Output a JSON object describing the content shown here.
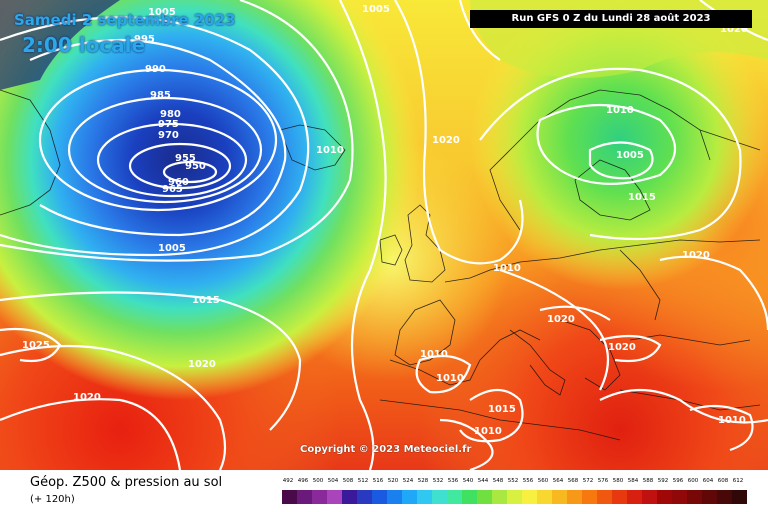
{
  "map": {
    "date_line": "Samedi 2 septembre 2023",
    "time_line": "2:00 locale",
    "run_info": "Run GFS 0 Z du Lundi 28 août 2023",
    "copyright": "Copyright © 2023 Meteociel.fr",
    "isobar_labels": [
      "1005",
      "1005",
      "1020",
      "995",
      "990",
      "985",
      "980",
      "975",
      "970",
      "955",
      "950",
      "960",
      "965",
      "1010",
      "1020",
      "1010",
      "1005",
      "1015",
      "1005",
      "1015",
      "1020",
      "1025",
      "1020",
      "1020",
      "1020",
      "1010",
      "1010",
      "1015",
      "1010",
      "1010",
      "1010",
      "1020"
    ]
  },
  "footer": {
    "title": "Géop. Z500 & pression au sol",
    "subtitle": "(+ 120h)"
  },
  "scale": {
    "labels": [
      "492",
      "496",
      "500",
      "504",
      "508",
      "512",
      "516",
      "520",
      "524",
      "528",
      "532",
      "536",
      "540",
      "544",
      "548",
      "552",
      "556",
      "560",
      "564",
      "568",
      "572",
      "576",
      "580",
      "584",
      "588",
      "592",
      "596",
      "600",
      "604",
      "608",
      "612"
    ],
    "colors": [
      "#4a0a4a",
      "#6a1a7a",
      "#8a2a9a",
      "#aa44bb",
      "#3a1a9a",
      "#2a3ac0",
      "#1a5ae0",
      "#1a80f0",
      "#20a8f8",
      "#30c8f0",
      "#40e0d0",
      "#40e8a0",
      "#40e060",
      "#70e040",
      "#a8e840",
      "#d8f040",
      "#f8f040",
      "#f8d830",
      "#f8b820",
      "#f89818",
      "#f87810",
      "#f05810",
      "#e83810",
      "#d82010",
      "#c01010",
      "#a00808",
      "#900808",
      "#780808",
      "#600808",
      "#480808",
      "#300808"
    ]
  }
}
